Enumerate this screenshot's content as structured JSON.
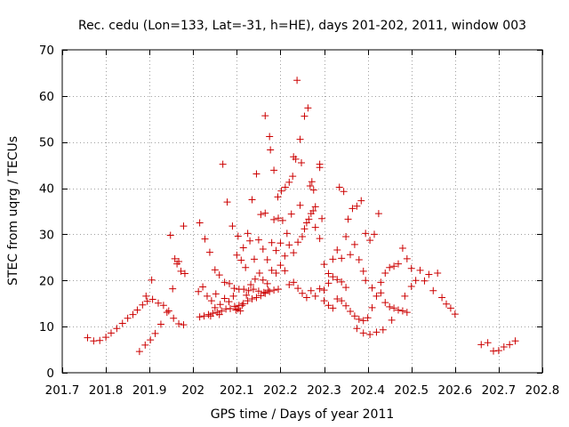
{
  "chart_data": {
    "type": "scatter",
    "title": "Rec. cedu (Lon=133, Lat=-31, h=HE), days 201-202, 2011, window 003",
    "xlabel": "GPS time / Days of year 2011",
    "ylabel": "STEC from uqrg / TECUs",
    "xlim": [
      201.7,
      202.8
    ],
    "ylim": [
      0,
      70
    ],
    "xticks": [
      201.7,
      201.8,
      201.9,
      202.0,
      202.1,
      202.2,
      202.3,
      202.4,
      202.5,
      202.6,
      202.7,
      202.8
    ],
    "xtick_labels": [
      "201.7",
      "201.8",
      "201.9",
      "202",
      "202.1",
      "202.2",
      "202.3",
      "202.4",
      "202.5",
      "202.6",
      "202.7",
      "202.8"
    ],
    "yticks": [
      0,
      10,
      20,
      30,
      40,
      50,
      60,
      70
    ],
    "ytick_labels": [
      "0",
      "10",
      "20",
      "30",
      "40",
      "50",
      "60",
      "70"
    ],
    "grid": true,
    "marker": "+",
    "color": "#cc0000",
    "series": [
      {
        "name": "STEC",
        "points": [
          [
            201.758,
            7.6
          ],
          [
            201.772,
            6.9
          ],
          [
            201.786,
            7.0
          ],
          [
            201.8,
            7.7
          ],
          [
            201.812,
            8.6
          ],
          [
            201.825,
            9.6
          ],
          [
            201.838,
            10.7
          ],
          [
            201.85,
            11.8
          ],
          [
            201.862,
            12.6
          ],
          [
            201.872,
            13.6
          ],
          [
            201.884,
            14.7
          ],
          [
            201.895,
            15.5
          ],
          [
            201.907,
            15.9
          ],
          [
            201.92,
            15.1
          ],
          [
            201.932,
            14.6
          ],
          [
            201.944,
            13.4
          ],
          [
            201.955,
            11.8
          ],
          [
            201.967,
            10.6
          ],
          [
            201.978,
            10.4
          ],
          [
            201.877,
            4.6
          ],
          [
            201.89,
            6.0
          ],
          [
            201.902,
            7.1
          ],
          [
            201.913,
            8.5
          ],
          [
            201.926,
            10.5
          ],
          [
            201.94,
            13.1
          ],
          [
            201.953,
            18.2
          ],
          [
            201.963,
            23.6
          ],
          [
            201.972,
            22.0
          ],
          [
            201.981,
            21.5
          ],
          [
            201.948,
            29.8
          ],
          [
            201.958,
            24.7
          ],
          [
            201.967,
            24.1
          ],
          [
            201.978,
            31.8
          ],
          [
            201.892,
            16.6
          ],
          [
            201.905,
            20.1
          ],
          [
            202.015,
            32.5
          ],
          [
            202.027,
            29.0
          ],
          [
            202.038,
            26.1
          ],
          [
            202.05,
            22.3
          ],
          [
            202.06,
            21.2
          ],
          [
            202.072,
            19.6
          ],
          [
            202.083,
            19.3
          ],
          [
            202.094,
            18.3
          ],
          [
            202.105,
            18.1
          ],
          [
            202.116,
            18.1
          ],
          [
            202.127,
            17.8
          ],
          [
            202.138,
            18.1
          ],
          [
            202.15,
            17.7
          ],
          [
            202.162,
            17.4
          ],
          [
            202.172,
            17.9
          ],
          [
            202.015,
            12.1
          ],
          [
            202.025,
            12.3
          ],
          [
            202.035,
            12.6
          ],
          [
            202.045,
            12.9
          ],
          [
            202.055,
            13.1
          ],
          [
            202.065,
            13.4
          ],
          [
            202.075,
            13.8
          ],
          [
            202.085,
            13.9
          ],
          [
            202.095,
            14.4
          ],
          [
            202.105,
            14.6
          ],
          [
            202.115,
            15.0
          ],
          [
            202.125,
            15.6
          ],
          [
            202.135,
            16.0
          ],
          [
            202.145,
            16.3
          ],
          [
            202.155,
            16.7
          ],
          [
            202.165,
            17.2
          ],
          [
            202.175,
            17.6
          ],
          [
            202.185,
            17.9
          ],
          [
            202.195,
            18.1
          ],
          [
            202.012,
            17.6
          ],
          [
            202.022,
            18.6
          ],
          [
            202.032,
            16.6
          ],
          [
            202.042,
            15.6
          ],
          [
            202.052,
            17.1
          ],
          [
            202.062,
            14.8
          ],
          [
            202.072,
            16.1
          ],
          [
            202.082,
            15.4
          ],
          [
            202.092,
            16.6
          ],
          [
            202.102,
            13.8
          ],
          [
            202.112,
            14.6
          ],
          [
            202.122,
            16.8
          ],
          [
            202.132,
            19.1
          ],
          [
            202.142,
            20.3
          ],
          [
            202.152,
            21.6
          ],
          [
            202.04,
            12.3
          ],
          [
            202.05,
            14.1
          ],
          [
            202.06,
            12.6
          ],
          [
            202.098,
            13.6
          ],
          [
            202.108,
            13.4
          ],
          [
            202.068,
            45.2
          ],
          [
            202.078,
            37.0
          ],
          [
            202.09,
            31.8
          ],
          [
            202.103,
            29.6
          ],
          [
            202.115,
            27.1
          ],
          [
            202.125,
            30.2
          ],
          [
            202.135,
            37.5
          ],
          [
            202.145,
            43.1
          ],
          [
            202.155,
            34.3
          ],
          [
            202.165,
            34.6
          ],
          [
            202.175,
            51.2
          ],
          [
            202.185,
            43.9
          ],
          [
            202.194,
            38.1
          ],
          [
            202.202,
            39.4
          ],
          [
            202.211,
            40.2
          ],
          [
            202.22,
            41.3
          ],
          [
            202.228,
            42.6
          ],
          [
            202.235,
            46.3
          ],
          [
            202.245,
            50.6
          ],
          [
            202.255,
            55.6
          ],
          [
            202.263,
            57.4
          ],
          [
            202.272,
            41.4
          ],
          [
            202.28,
            36.0
          ],
          [
            202.29,
            45.2
          ],
          [
            202.165,
            55.7
          ],
          [
            202.177,
            48.3
          ],
          [
            202.23,
            46.8
          ],
          [
            202.238,
            63.4
          ],
          [
            202.248,
            45.5
          ],
          [
            202.268,
            40.5
          ],
          [
            202.276,
            39.6
          ],
          [
            202.29,
            44.5
          ],
          [
            202.1,
            25.5
          ],
          [
            202.11,
            24.4
          ],
          [
            202.12,
            22.8
          ],
          [
            202.13,
            28.6
          ],
          [
            202.14,
            24.6
          ],
          [
            202.15,
            28.8
          ],
          [
            202.16,
            26.8
          ],
          [
            202.17,
            24.5
          ],
          [
            202.18,
            28.2
          ],
          [
            202.19,
            26.5
          ],
          [
            202.2,
            28.1
          ],
          [
            202.21,
            25.3
          ],
          [
            202.22,
            27.7
          ],
          [
            202.23,
            26.0
          ],
          [
            202.24,
            28.3
          ],
          [
            202.25,
            29.5
          ],
          [
            202.26,
            32.5
          ],
          [
            202.27,
            34.5
          ],
          [
            202.28,
            31.5
          ],
          [
            202.29,
            29.1
          ],
          [
            202.16,
            20.1
          ],
          [
            202.17,
            19.3
          ],
          [
            202.18,
            22.2
          ],
          [
            202.19,
            21.6
          ],
          [
            202.2,
            23.3
          ],
          [
            202.21,
            22.1
          ],
          [
            202.22,
            19.1
          ],
          [
            202.23,
            19.6
          ],
          [
            202.24,
            18.3
          ],
          [
            202.25,
            17.2
          ],
          [
            202.26,
            16.3
          ],
          [
            202.27,
            17.8
          ],
          [
            202.28,
            16.6
          ],
          [
            202.29,
            18.2
          ],
          [
            202.3,
            17.9
          ],
          [
            202.31,
            19.4
          ],
          [
            202.32,
            20.8
          ],
          [
            202.33,
            20.2
          ],
          [
            202.34,
            19.7
          ],
          [
            202.35,
            18.5
          ],
          [
            202.185,
            33.2
          ],
          [
            202.195,
            33.5
          ],
          [
            202.205,
            33.0
          ],
          [
            202.215,
            30.2
          ],
          [
            202.225,
            34.4
          ],
          [
            202.245,
            36.3
          ],
          [
            202.255,
            31.2
          ],
          [
            202.265,
            33.3
          ],
          [
            202.275,
            35.1
          ],
          [
            202.295,
            33.4
          ],
          [
            202.3,
            23.5
          ],
          [
            202.31,
            21.5
          ],
          [
            202.32,
            24.6
          ],
          [
            202.33,
            26.6
          ],
          [
            202.34,
            24.8
          ],
          [
            202.3,
            15.6
          ],
          [
            202.31,
            14.6
          ],
          [
            202.32,
            14.0
          ],
          [
            202.33,
            16.0
          ],
          [
            202.34,
            15.6
          ],
          [
            202.35,
            14.5
          ],
          [
            202.36,
            13.3
          ],
          [
            202.37,
            12.3
          ],
          [
            202.38,
            11.6
          ],
          [
            202.39,
            11.3
          ],
          [
            202.4,
            11.9
          ],
          [
            202.41,
            14.1
          ],
          [
            202.42,
            16.6
          ],
          [
            202.43,
            17.3
          ],
          [
            202.335,
            40.2
          ],
          [
            202.345,
            39.3
          ],
          [
            202.355,
            33.3
          ],
          [
            202.365,
            35.6
          ],
          [
            202.375,
            36.1
          ],
          [
            202.385,
            37.3
          ],
          [
            202.395,
            30.2
          ],
          [
            202.405,
            28.7
          ],
          [
            202.415,
            30.0
          ],
          [
            202.425,
            34.5
          ],
          [
            202.35,
            29.5
          ],
          [
            202.36,
            25.6
          ],
          [
            202.37,
            27.8
          ],
          [
            202.38,
            24.5
          ],
          [
            202.39,
            22.0
          ],
          [
            202.375,
            9.6
          ],
          [
            202.39,
            8.6
          ],
          [
            202.405,
            8.3
          ],
          [
            202.42,
            8.8
          ],
          [
            202.435,
            9.3
          ],
          [
            202.395,
            20.0
          ],
          [
            202.41,
            18.4
          ],
          [
            202.43,
            19.6
          ],
          [
            202.44,
            21.6
          ],
          [
            202.45,
            22.8
          ],
          [
            202.46,
            23.1
          ],
          [
            202.47,
            23.6
          ],
          [
            202.48,
            27.0
          ],
          [
            202.49,
            24.7
          ],
          [
            202.5,
            22.6
          ],
          [
            202.44,
            15.2
          ],
          [
            202.45,
            14.3
          ],
          [
            202.46,
            14.0
          ],
          [
            202.47,
            13.6
          ],
          [
            202.48,
            13.4
          ],
          [
            202.49,
            13.1
          ],
          [
            202.5,
            18.7
          ],
          [
            202.51,
            20.0
          ],
          [
            202.52,
            22.2
          ],
          [
            202.53,
            19.9
          ],
          [
            202.54,
            21.3
          ],
          [
            202.55,
            17.8
          ],
          [
            202.56,
            21.6
          ],
          [
            202.57,
            16.3
          ],
          [
            202.58,
            14.9
          ],
          [
            202.59,
            14.0
          ],
          [
            202.6,
            12.7
          ],
          [
            202.455,
            11.4
          ],
          [
            202.485,
            16.6
          ],
          [
            202.66,
            6.1
          ],
          [
            202.675,
            6.5
          ],
          [
            202.688,
            4.7
          ],
          [
            202.7,
            4.8
          ],
          [
            202.712,
            5.6
          ],
          [
            202.725,
            6.1
          ],
          [
            202.738,
            6.9
          ]
        ]
      }
    ]
  }
}
